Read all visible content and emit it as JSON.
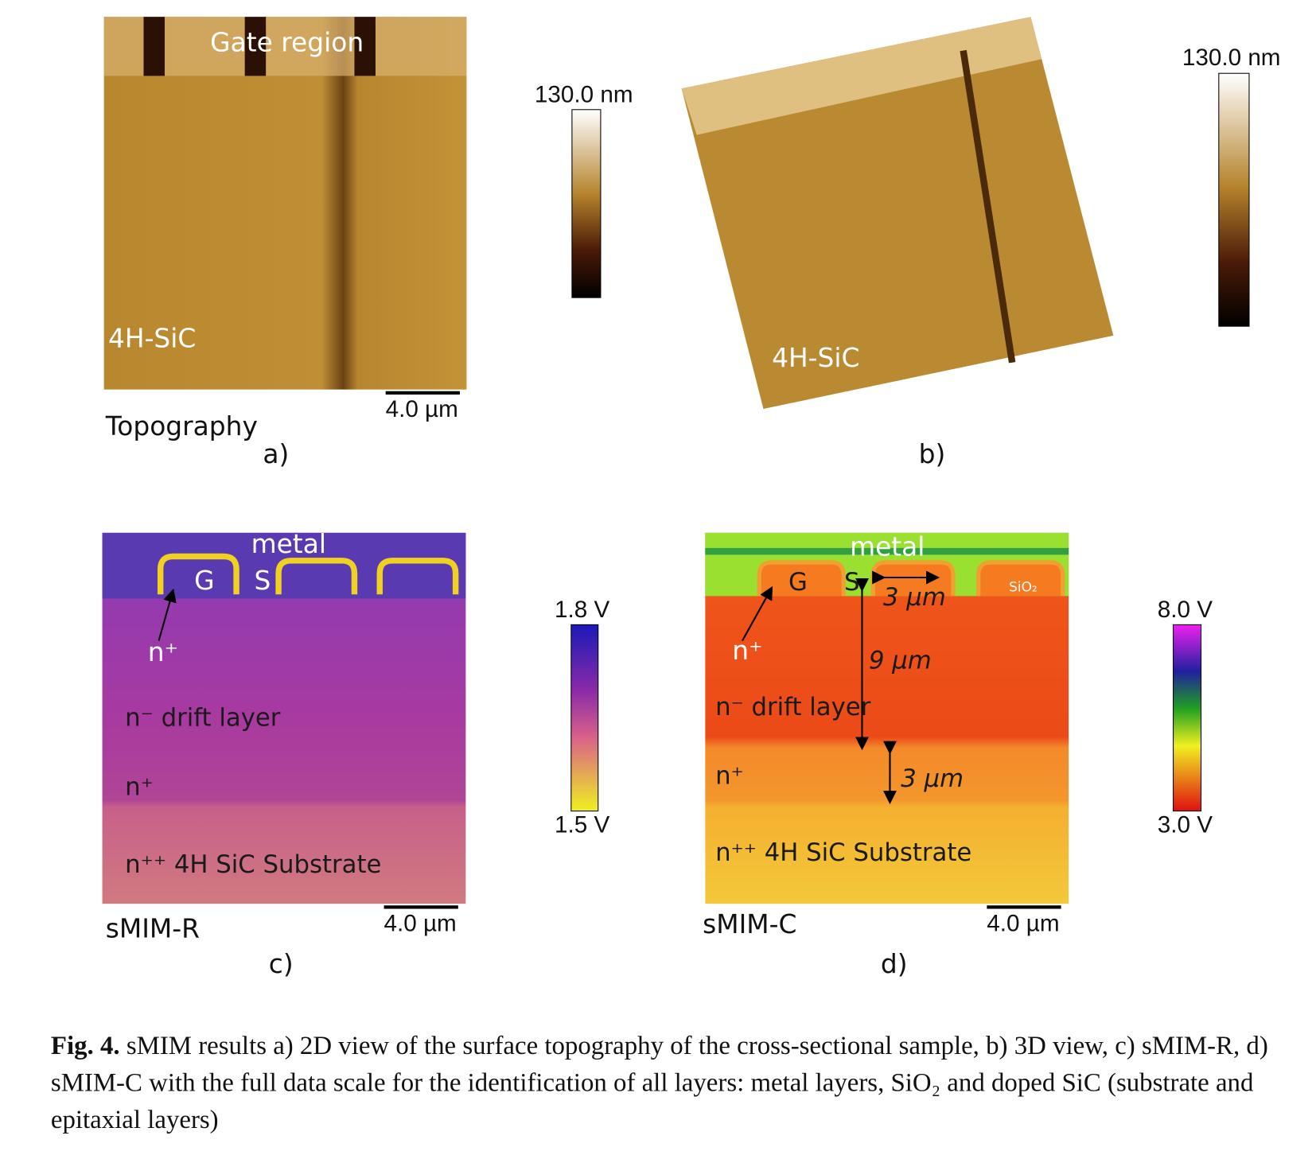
{
  "panel_a": {
    "title": "Gate region",
    "material": "4H-SiC",
    "colorbar_max": "130.0 nm",
    "scale_bar": "4.0 µm",
    "name": "Topography",
    "letter": "a)"
  },
  "panel_b": {
    "material": "4H-SiC",
    "colorbar_max": "130.0 nm",
    "letter": "b)"
  },
  "panel_c": {
    "metal": "metal",
    "gate": "G",
    "source": "S",
    "n_plus_top": "n⁺",
    "drift": "n⁻ drift layer",
    "n_plus": "n⁺",
    "substrate": "n⁺⁺ 4H SiC Substrate",
    "colorbar_max": "1.8 V",
    "colorbar_min": "1.5 V",
    "scale_bar": "4.0 µm",
    "name": "sMIM-R",
    "letter": "c)"
  },
  "panel_d": {
    "metal": "metal",
    "gate": "G",
    "source": "S",
    "oxide": "SiO₂",
    "width": "3 µm",
    "drift_thickness": "9 µm",
    "n_plus_thickness": "3 µm",
    "n_plus_top": "n⁺",
    "drift": "n⁻ drift layer",
    "n_plus": "n⁺",
    "substrate": "n⁺⁺ 4H SiC Substrate",
    "colorbar_max": "8.0 V",
    "colorbar_min": "3.0 V",
    "scale_bar": "4.0 µm",
    "name": "sMIM-C",
    "letter": "d)"
  },
  "caption": {
    "label": "Fig. 4.",
    "text": "sMIM results a) 2D view of the surface topography of the cross-sectional sample, b) 3D view, c) sMIM-R, d) sMIM-C with the full data scale for the identification of all layers: metal layers, SiO₂ and doped SiC (substrate and epitaxial layers)"
  }
}
